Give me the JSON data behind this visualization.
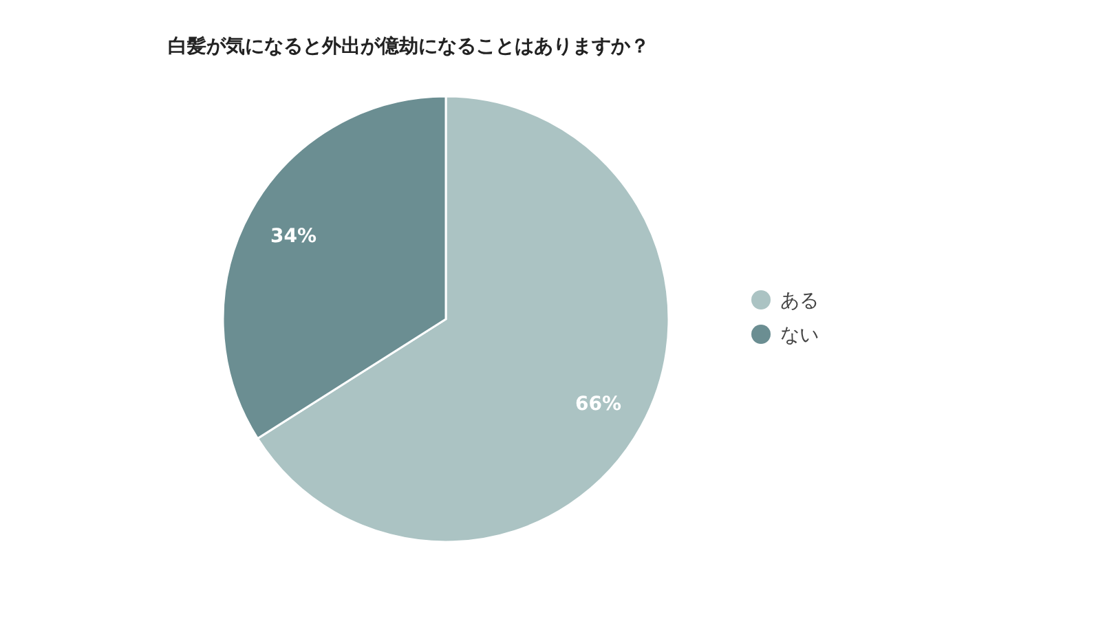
{
  "chart_data": {
    "type": "pie",
    "title": "白髪が気になると外出が億劫になることはありますか？",
    "categories": [
      "ある",
      "ない"
    ],
    "values": [
      66,
      34
    ],
    "value_labels": [
      "66%",
      "34%"
    ],
    "colors": [
      "#abc3c3",
      "#6b8e92"
    ],
    "legend": "right"
  }
}
